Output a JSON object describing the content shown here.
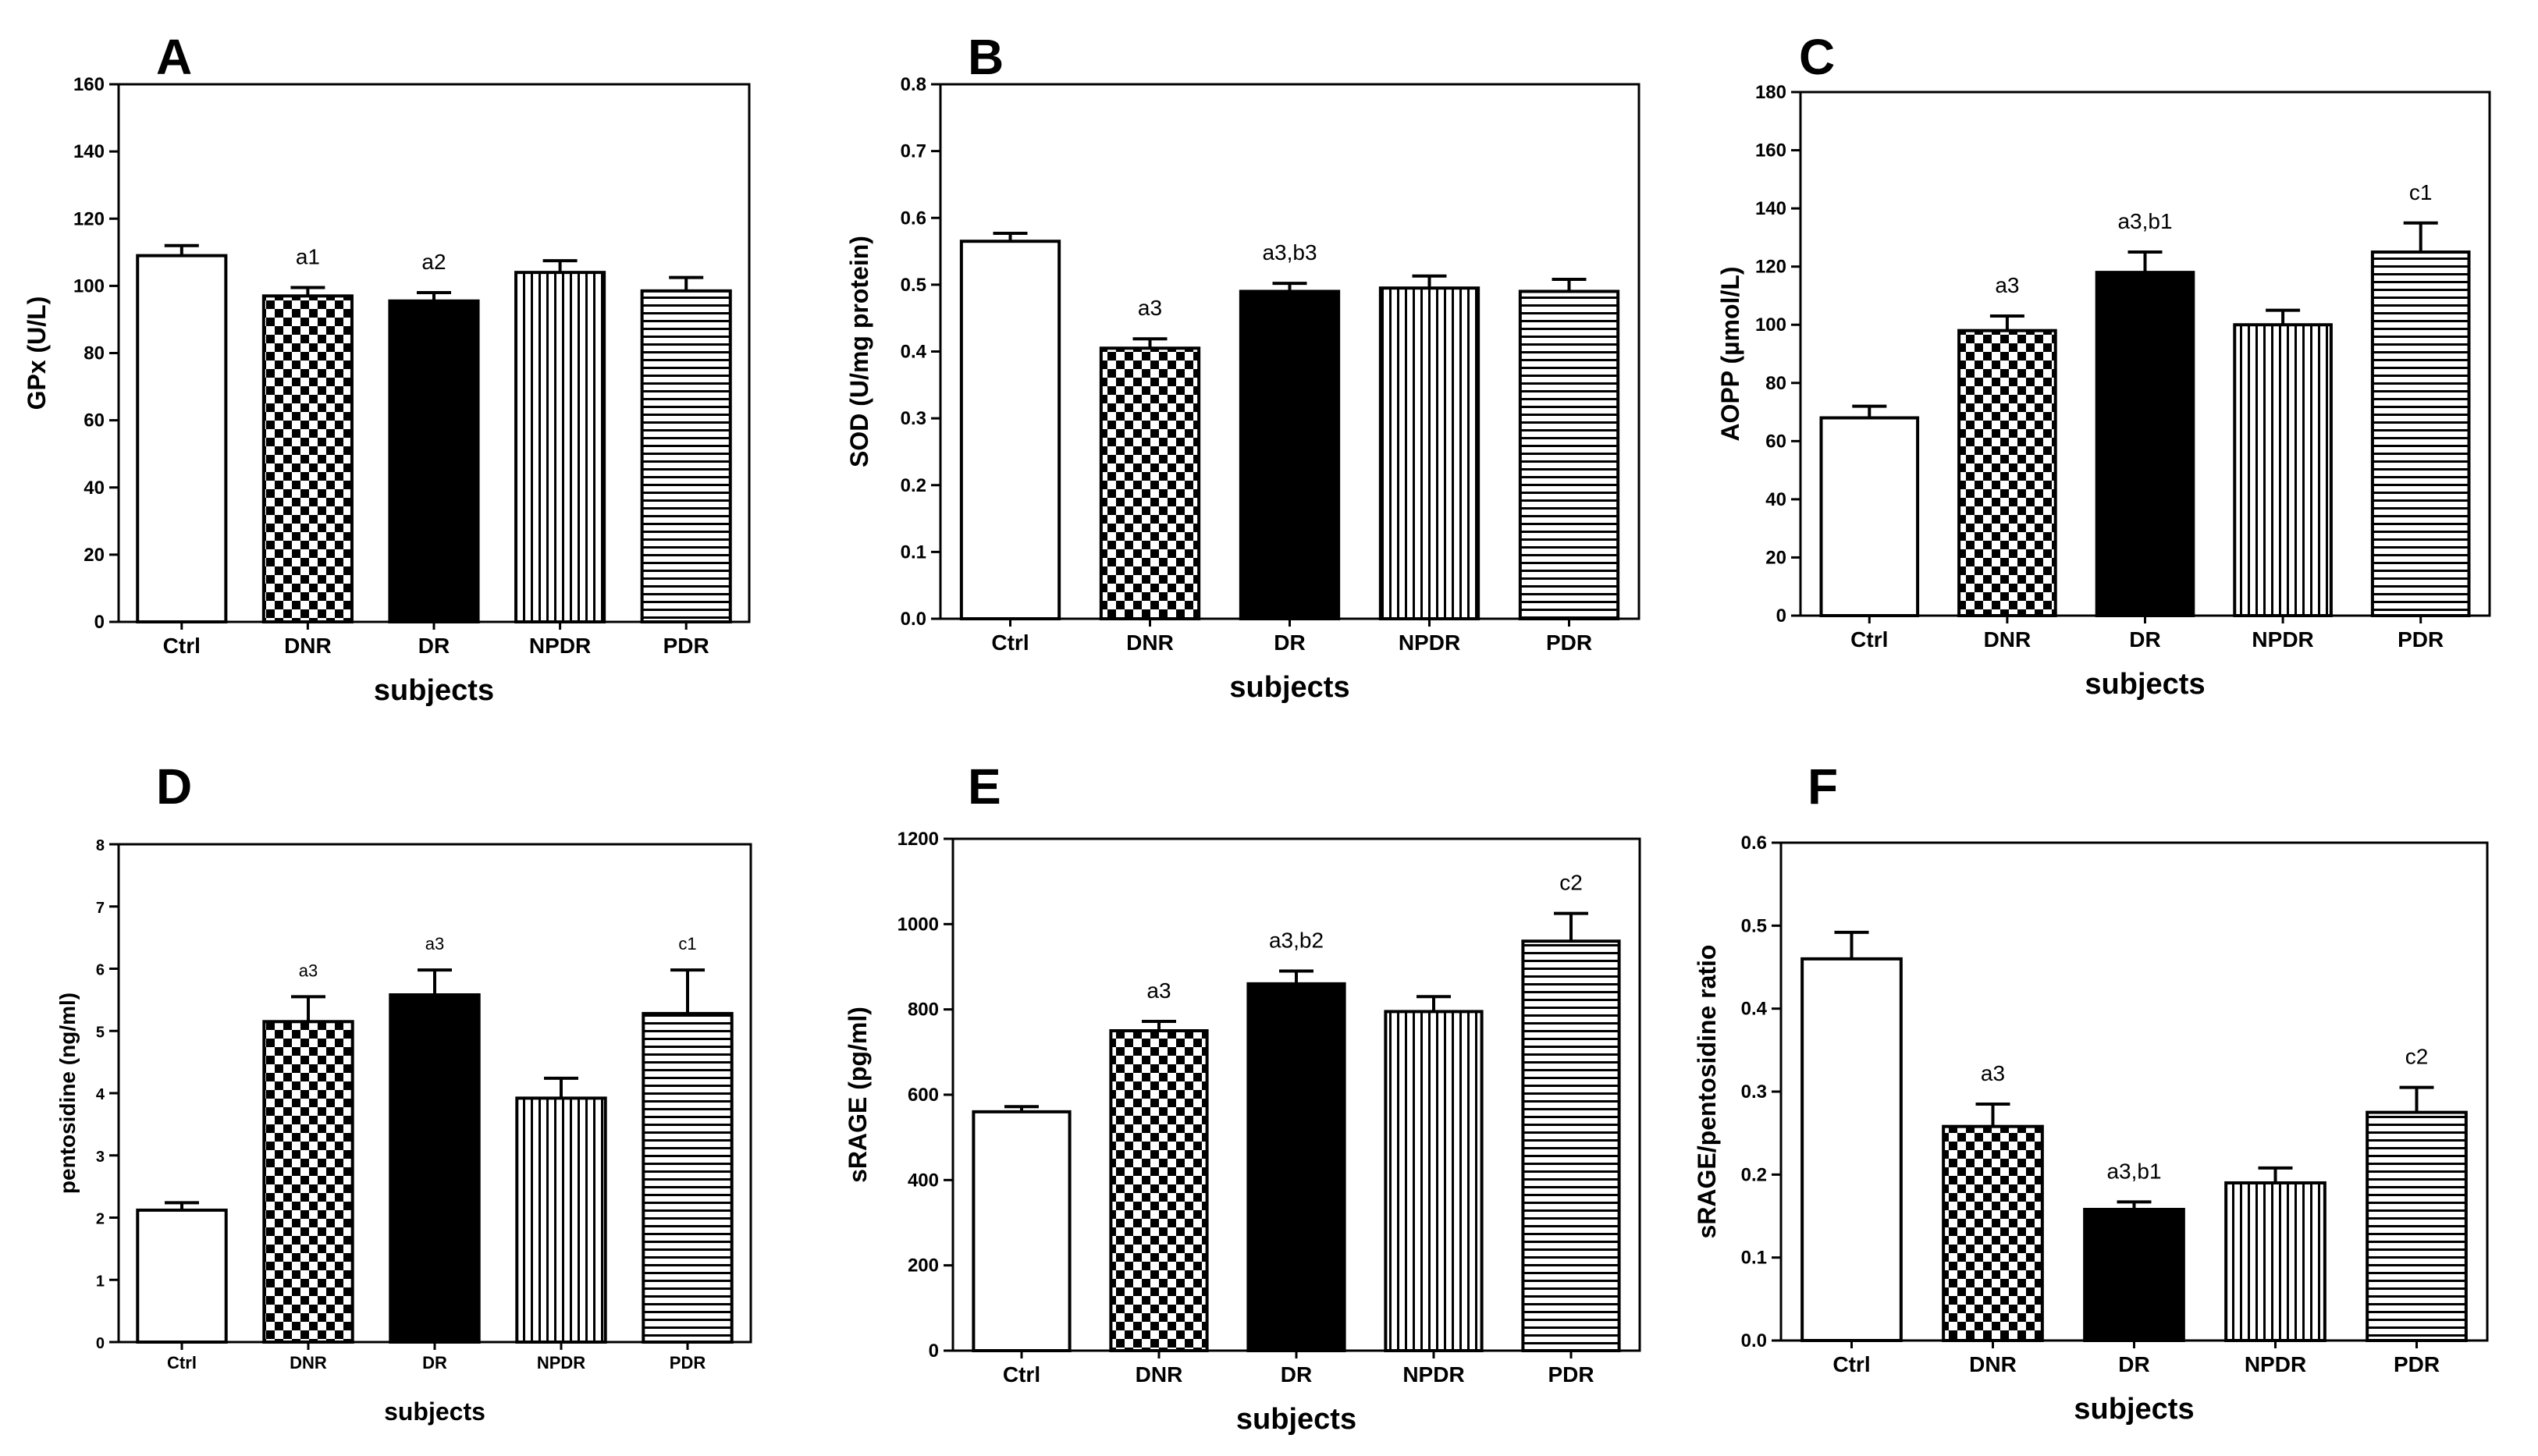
{
  "chart_data": [
    {
      "panel": "A",
      "type": "bar",
      "categories": [
        "Ctrl",
        "DNR",
        "DR",
        "NPDR",
        "PDR"
      ],
      "values": [
        109,
        97,
        95.5,
        104,
        98.5
      ],
      "errors": [
        3,
        2.5,
        2.5,
        3.5,
        4
      ],
      "annotations": [
        "",
        "a1",
        "a2",
        "",
        ""
      ],
      "xlabel": "subjects",
      "ylabel": "GPx (U/L)",
      "ylim": [
        0,
        160
      ],
      "yticks": [
        "0",
        "20",
        "40",
        "60",
        "80",
        "100",
        "120",
        "140",
        "160"
      ],
      "patterns": [
        "white",
        "checker",
        "black",
        "vertical",
        "horizontal"
      ]
    },
    {
      "panel": "B",
      "type": "bar",
      "categories": [
        "Ctrl",
        "DNR",
        "DR",
        "NPDR",
        "PDR"
      ],
      "values": [
        0.565,
        0.405,
        0.49,
        0.495,
        0.49
      ],
      "errors": [
        0.012,
        0.014,
        0.012,
        0.018,
        0.018
      ],
      "annotations": [
        "",
        "a3",
        "a3,b3",
        "",
        ""
      ],
      "xlabel": "subjects",
      "ylabel": "SOD (U/mg protein)",
      "ylim": [
        0,
        0.8
      ],
      "yticks": [
        "0.0",
        "0.1",
        "0.2",
        "0.3",
        "0.4",
        "0.5",
        "0.6",
        "0.7",
        "0.8"
      ],
      "patterns": [
        "white",
        "checker",
        "black",
        "vertical",
        "horizontal"
      ]
    },
    {
      "panel": "C",
      "type": "bar",
      "categories": [
        "Ctrl",
        "DNR",
        "DR",
        "NPDR",
        "PDR"
      ],
      "values": [
        68,
        98,
        118,
        100,
        125
      ],
      "errors": [
        4,
        5,
        7,
        5,
        10
      ],
      "annotations": [
        "",
        "a3",
        "a3,b1",
        "",
        "c1"
      ],
      "xlabel": "subjects",
      "ylabel": "AOPP (µmol/L)",
      "ylim": [
        0,
        180
      ],
      "yticks": [
        "0",
        "20",
        "40",
        "60",
        "80",
        "100",
        "120",
        "140",
        "160",
        "180"
      ],
      "patterns": [
        "white",
        "checker",
        "black",
        "vertical",
        "horizontal"
      ]
    },
    {
      "panel": "D",
      "type": "bar",
      "categories": [
        "Ctrl",
        "DNR",
        "DR",
        "NPDR",
        "PDR"
      ],
      "values": [
        2.12,
        5.15,
        5.58,
        3.92,
        5.28
      ],
      "errors": [
        0.12,
        0.4,
        0.4,
        0.32,
        0.7
      ],
      "annotations": [
        "",
        "a3",
        "a3",
        "",
        "c1"
      ],
      "xlabel": "subjects",
      "ylabel": "pentosidine (ng/ml)",
      "ylim": [
        0,
        8
      ],
      "yticks": [
        "0",
        "1",
        "2",
        "3",
        "4",
        "5",
        "6",
        "7",
        "8"
      ],
      "patterns": [
        "white",
        "checker",
        "black",
        "vertical",
        "horizontal"
      ]
    },
    {
      "panel": "E",
      "type": "bar",
      "categories": [
        "Ctrl",
        "DNR",
        "DR",
        "NPDR",
        "PDR"
      ],
      "values": [
        560,
        750,
        860,
        795,
        960
      ],
      "errors": [
        12,
        22,
        30,
        35,
        65
      ],
      "annotations": [
        "",
        "a3",
        "a3,b2",
        "",
        "c2"
      ],
      "xlabel": "subjects",
      "ylabel": "sRAGE (pg/ml)",
      "ylim": [
        0,
        1200
      ],
      "yticks": [
        "0",
        "200",
        "400",
        "600",
        "800",
        "1000",
        "1200"
      ],
      "patterns": [
        "white",
        "checker",
        "black",
        "vertical",
        "horizontal"
      ]
    },
    {
      "panel": "F",
      "type": "bar",
      "categories": [
        "Ctrl",
        "DNR",
        "DR",
        "NPDR",
        "PDR"
      ],
      "values": [
        0.46,
        0.258,
        0.158,
        0.19,
        0.275
      ],
      "errors": [
        0.032,
        0.027,
        0.009,
        0.018,
        0.03
      ],
      "annotations": [
        "",
        "a3",
        "a3,b1",
        "",
        "c2"
      ],
      "xlabel": "subjects",
      "ylabel": "sRAGE/pentosidine ratio",
      "ylim": [
        0,
        0.6
      ],
      "yticks": [
        "0.0",
        "0.1",
        "0.2",
        "0.3",
        "0.4",
        "0.5",
        "0.6"
      ],
      "patterns": [
        "white",
        "checker",
        "black",
        "vertical",
        "horizontal"
      ]
    }
  ]
}
